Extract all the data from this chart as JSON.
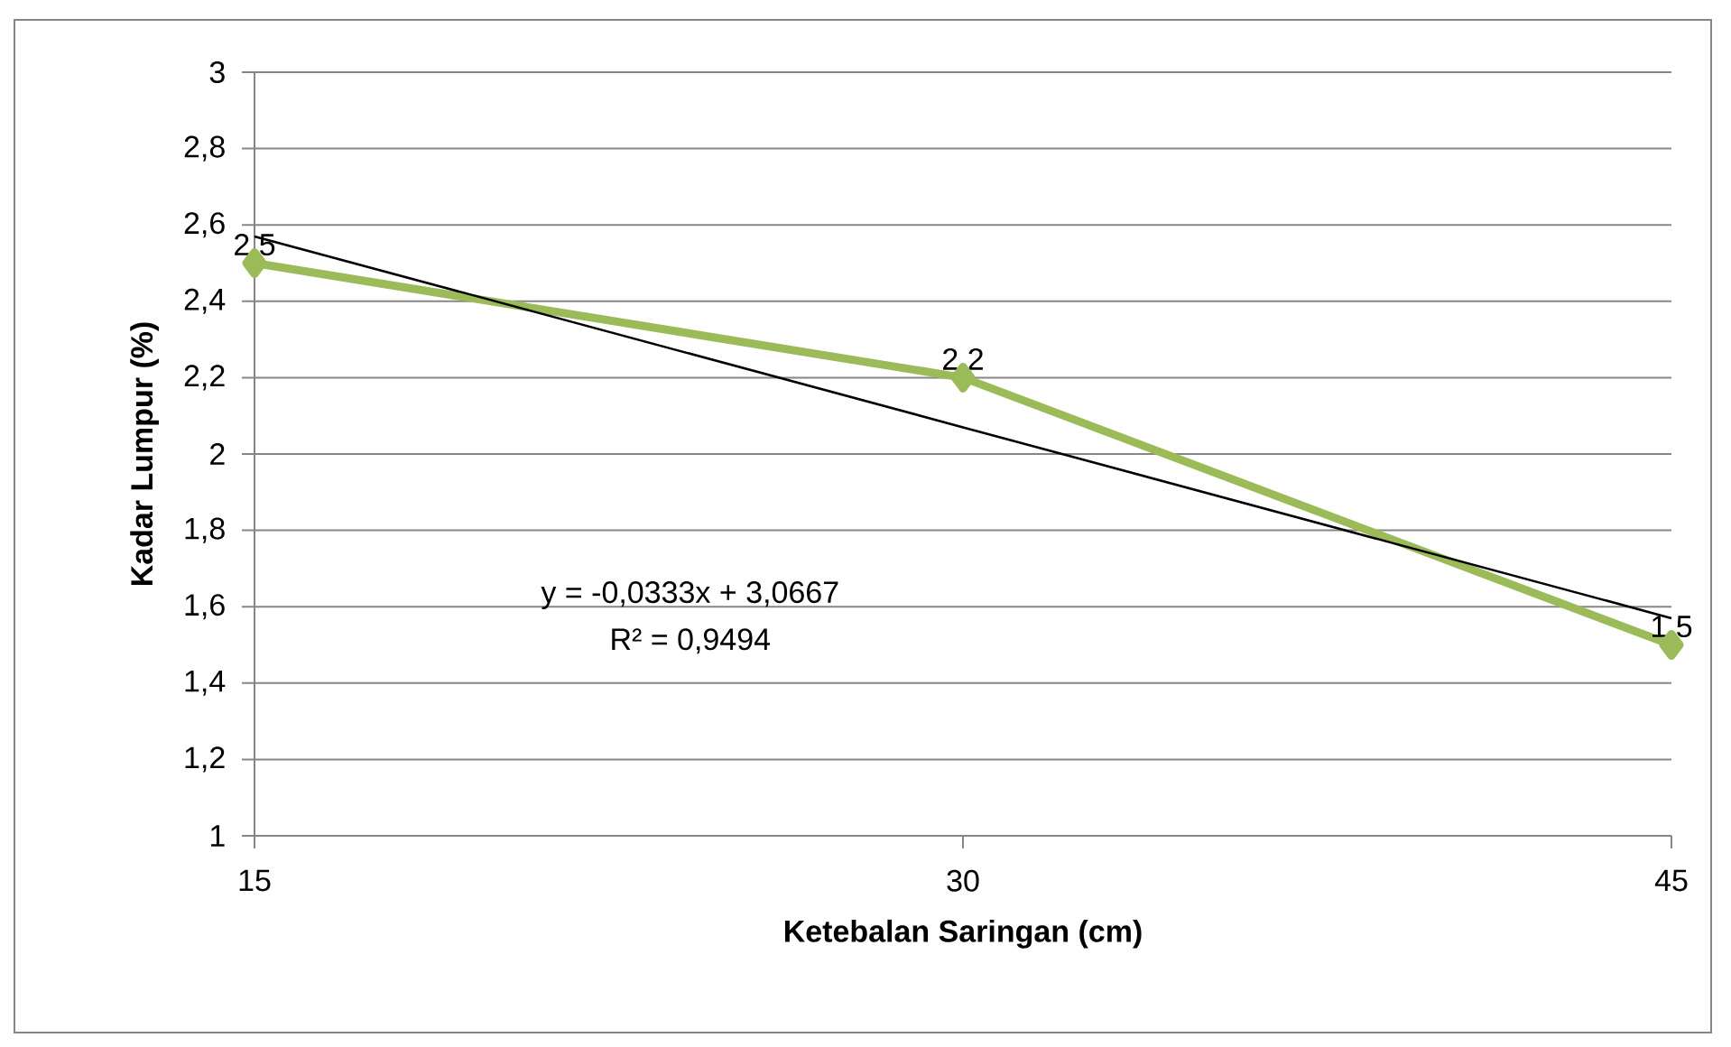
{
  "chart_data": {
    "type": "line",
    "xlabel": "Ketebalan Saringan (cm)",
    "ylabel": "Kadar Lumpur (%)",
    "categories": [
      "15",
      "30",
      "45"
    ],
    "series": [
      {
        "color": "#9bbb59",
        "values": [
          2.5,
          2.2,
          1.5
        ],
        "value_labels": [
          "2,5",
          "2,2",
          "1,5"
        ],
        "marker": "diamond"
      },
      {
        "type": "line",
        "color": "#000000",
        "values": [
          2.57,
          2.07,
          1.57
        ],
        "marker": "none"
      }
    ],
    "ylim": [
      1,
      3
    ],
    "yticks": [
      1,
      {
        "value": 1.2,
        "label": "1,2"
      },
      {
        "value": 1.4,
        "label": "1,4"
      },
      {
        "value": 1.6,
        "label": "1,6"
      },
      {
        "value": 1.8,
        "label": "1,8"
      },
      2,
      {
        "value": 2.2,
        "label": "2,2"
      },
      {
        "value": 2.4,
        "label": "2,4"
      },
      {
        "value": 2.6,
        "label": "2,6"
      },
      {
        "value": 2.8,
        "label": "2,8"
      },
      3
    ],
    "grid": "y",
    "annotations": [
      "y = -0,0333x + 3,0667",
      "R² = 0,9494"
    ]
  }
}
